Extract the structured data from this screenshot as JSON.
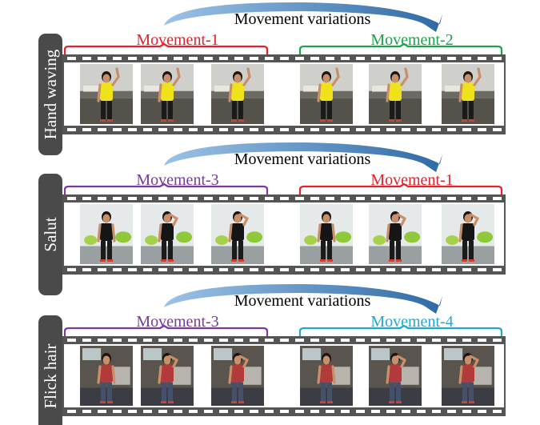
{
  "rows": [
    {
      "label": "Hand waving",
      "variation_text": "Movement variations",
      "left_movement": "Movement-1",
      "right_movement": "Movement-2",
      "left_color": "#e3222b",
      "right_color": "#1aa34a",
      "photo_theme": "yellow-shirt-office"
    },
    {
      "label": "Salut",
      "variation_text": "Movement variations",
      "left_movement": "Movement-3",
      "right_movement": "Movement-1",
      "left_color": "#7a3a9b",
      "right_color": "#e3222b",
      "photo_theme": "black-shirt-chairs"
    },
    {
      "label": "Flick hair",
      "variation_text": "Movement variations",
      "left_movement": "Movement-3",
      "right_movement": "Movement-4",
      "left_color": "#7a3a9b",
      "right_color": "#1ea8d6",
      "photo_theme": "red-shirt-window"
    }
  ],
  "colors": {
    "arrow": "#3f78b0",
    "label_tab": "#4a4a4a",
    "film_strip": "#555555"
  }
}
